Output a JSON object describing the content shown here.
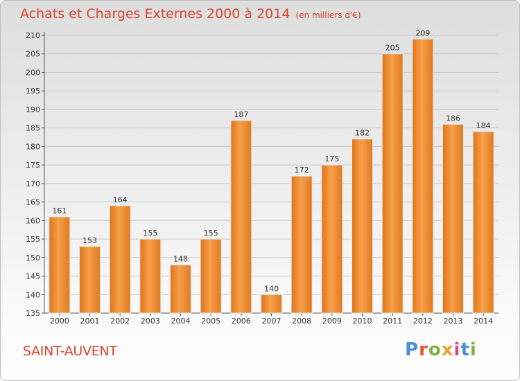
{
  "header": {
    "title": "Achats et Charges Externes 2000 à 2014",
    "unit": "(en milliers d'€)"
  },
  "footer": {
    "commune": "SAINT-AUVENT",
    "logo": "Proxiti",
    "logo_colors": [
      "#4a8fd8",
      "#e8572e",
      "#7cb342",
      "#e8a23a",
      "#d94a8a",
      "#4a8fd8",
      "#7cb342"
    ]
  },
  "colors": {
    "bar": "#f08a2a",
    "bar_light": "#f7a85a",
    "accent": "#d9462b"
  },
  "chart_data": {
    "type": "bar",
    "title": "Achats et Charges Externes 2000 à 2014",
    "categories": [
      "2000",
      "2001",
      "2002",
      "2003",
      "2004",
      "2005",
      "2006",
      "2007",
      "2008",
      "2009",
      "2010",
      "2011",
      "2012",
      "2013",
      "2014"
    ],
    "values": [
      161,
      153,
      164,
      155,
      148,
      155,
      187,
      140,
      172,
      175,
      182,
      205,
      209,
      186,
      184
    ],
    "ylim": [
      135,
      210
    ],
    "yticks": [
      135,
      140,
      145,
      150,
      155,
      160,
      165,
      170,
      175,
      180,
      185,
      190,
      195,
      200,
      205,
      210
    ],
    "grid": true
  }
}
